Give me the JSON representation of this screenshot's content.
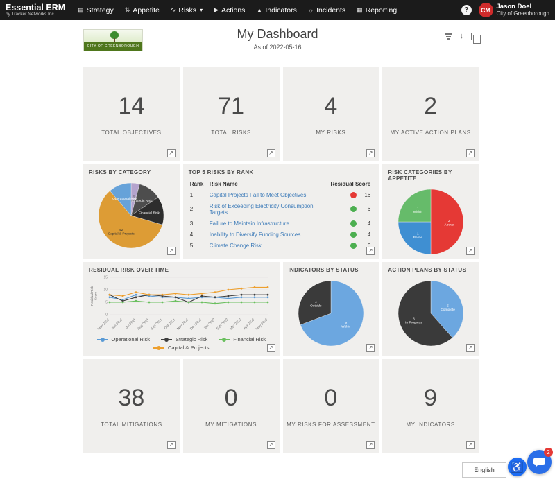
{
  "icons": {
    "expand": "↗",
    "caret": "▾",
    "help": "?",
    "download": "↓",
    "accessibility": "♿"
  },
  "nav": {
    "brand_title": "Essential ERM",
    "brand_subtitle": "by Tracker Networks Inc.",
    "items": [
      {
        "label": "Strategy",
        "glyph": "▤"
      },
      {
        "label": "Appetite",
        "glyph": "⇅"
      },
      {
        "label": "Risks",
        "glyph": "∿"
      },
      {
        "label": "Actions",
        "glyph": "▶"
      },
      {
        "label": "Indicators",
        "glyph": "▲"
      },
      {
        "label": "Incidents",
        "glyph": "☼"
      },
      {
        "label": "Reporting",
        "glyph": "▦"
      }
    ],
    "user": {
      "initials": "CM",
      "name": "Jason Doel",
      "org": "City of Greenborough"
    }
  },
  "header": {
    "logo_text": "CITY OF GREENBOROUGH",
    "title": "My Dashboard",
    "subtitle": "As of 2022-05-16"
  },
  "stats_top": [
    {
      "value": "14",
      "label": "TOTAL OBJECTIVES"
    },
    {
      "value": "71",
      "label": "TOTAL RISKS"
    },
    {
      "value": "4",
      "label": "MY RISKS"
    },
    {
      "value": "2",
      "label": "MY ACTIVE ACTION PLANS"
    }
  ],
  "stats_bottom": [
    {
      "value": "38",
      "label": "TOTAL MITIGATIONS"
    },
    {
      "value": "0",
      "label": "MY MITIGATIONS"
    },
    {
      "value": "0",
      "label": "MY RISKS FOR ASSESSMENT"
    },
    {
      "value": "9",
      "label": "MY INDICATORS"
    }
  ],
  "top_risks": {
    "title": "TOP 5 RISKS BY RANK",
    "columns": [
      "Rank",
      "Risk Name",
      "Residual Score"
    ],
    "rows": [
      {
        "rank": "1",
        "name": "Capital Projects Fail to Meet Objectives",
        "score": "16",
        "color": "#e53935"
      },
      {
        "rank": "2",
        "name": "Risk of Exceeding Electricity Consumption Targets",
        "score": "6",
        "color": "#4caf50"
      },
      {
        "rank": "3",
        "name": "Failure to Maintain Infrastructure",
        "score": "4",
        "color": "#4caf50"
      },
      {
        "rank": "4",
        "name": "Inability to Diversify Funding Sources",
        "score": "4",
        "color": "#4caf50"
      },
      {
        "rank": "5",
        "name": "Climate Change Risk",
        "score": "6",
        "color": "#4caf50"
      }
    ]
  },
  "chart_data": [
    {
      "type": "pie",
      "title": "RISKS BY CATEGORY",
      "slices": [
        {
          "label": "Unassigned",
          "value": 3,
          "color": "#b4a3cd",
          "text": "#555",
          "show_value": true
        },
        {
          "label": "Strategic Risk",
          "value": 8,
          "color": "#4d4d4d",
          "text": "#fff",
          "show_value": false
        },
        {
          "label": "Financial Risk",
          "value": 10,
          "color": "#2d2d2d",
          "text": "#fff",
          "show_value": false
        },
        {
          "label": "Capital & Projects",
          "value": 42,
          "color": "#dd9c35",
          "text": "#333",
          "show_value": true
        },
        {
          "label": "Operational Risk",
          "value": 8,
          "color": "#66a2d9",
          "text": "#fff",
          "show_value": false
        }
      ]
    },
    {
      "type": "pie",
      "title": "RISK CATEGORIES BY APPETITE",
      "slices": [
        {
          "label": "Above",
          "value": 2,
          "color": "#e53935",
          "text": "#fff",
          "show_value": true
        },
        {
          "label": "Below",
          "value": 1,
          "color": "#3f8fd2",
          "text": "#fff",
          "show_value": true
        },
        {
          "label": "Within",
          "value": 1,
          "color": "#66bb6a",
          "text": "#fff",
          "show_value": true
        }
      ]
    },
    {
      "type": "line",
      "title": "RESIDUAL RISK OVER TIME",
      "ylabel": "Residual Risk Score",
      "ylim": [
        0,
        15
      ],
      "yticks": [
        0,
        5,
        10,
        15
      ],
      "x": [
        "May 2021",
        "Jun 2021",
        "Jul 2021",
        "Aug 2021",
        "Sep 2021",
        "Oct 2021",
        "Nov 2021",
        "Dec 2021",
        "Jan 2022",
        "Feb 2022",
        "Mar 2022",
        "Apr 2022",
        "May 2022"
      ],
      "series": [
        {
          "name": "Operational Risk",
          "color": "#5b9bd5",
          "values": [
            7,
            6,
            8,
            7.5,
            7,
            7,
            6.5,
            7,
            7,
            6.5,
            7,
            7,
            7
          ]
        },
        {
          "name": "Strategic Risk",
          "color": "#3f3f3f",
          "values": [
            8,
            5.5,
            7,
            8,
            7.5,
            7,
            5,
            7.5,
            7,
            7.5,
            8,
            8,
            8
          ]
        },
        {
          "name": "Financial Risk",
          "color": "#6abf5e",
          "values": [
            5,
            5,
            5.5,
            5,
            5,
            5.5,
            5,
            5,
            4.5,
            5,
            5,
            5,
            5
          ]
        },
        {
          "name": "Capital & Projects",
          "color": "#ed9f2d",
          "values": [
            8,
            7.5,
            9,
            8,
            8,
            8.5,
            8,
            8.5,
            9,
            10,
            10.5,
            11,
            11
          ]
        }
      ]
    },
    {
      "type": "pie",
      "title": "INDICATORS BY STATUS",
      "slices": [
        {
          "label": "Within",
          "value": 9,
          "color": "#6ca7e0",
          "text": "#fff",
          "show_value": true
        },
        {
          "label": "Outside",
          "value": 4,
          "color": "#3a3a3a",
          "text": "#fff",
          "show_value": true
        }
      ]
    },
    {
      "type": "pie",
      "title": "ACTION PLANS BY STATUS",
      "slices": [
        {
          "label": "Complete",
          "value": 5,
          "color": "#6ca7e0",
          "text": "#fff",
          "show_value": true
        },
        {
          "label": "In Progress",
          "value": 8,
          "color": "#3a3a3a",
          "text": "#fff",
          "show_value": true
        }
      ]
    }
  ],
  "footer": {
    "language": "English",
    "chat_badge": "2"
  }
}
